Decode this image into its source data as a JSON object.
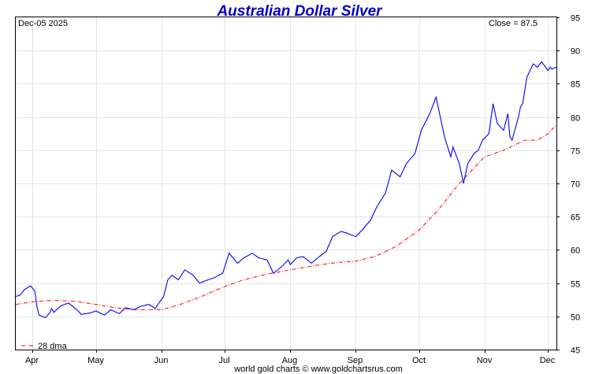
{
  "chart_data": {
    "type": "line",
    "title": "Australian Dollar Silver",
    "date_label": "Dec-05  2025",
    "close_label": "Close = 87.5",
    "footer": "world gold charts © www.goldchartsrus.com",
    "xlabel": "",
    "ylabel": "",
    "ylim": [
      45,
      95
    ],
    "yticks": [
      "45",
      "50",
      "55",
      "60",
      "65",
      "70",
      "75",
      "80",
      "85",
      "90",
      "95"
    ],
    "x_range": [
      "2025-03-24",
      "2025-12-05"
    ],
    "x_ticks": [
      {
        "label": "Apr",
        "date": "2025-04-01"
      },
      {
        "label": "May",
        "date": "2025-05-01"
      },
      {
        "label": "Jun",
        "date": "2025-06-01"
      },
      {
        "label": "Jul",
        "date": "2025-07-01"
      },
      {
        "label": "Aug",
        "date": "2025-08-01"
      },
      {
        "label": "Sep",
        "date": "2025-09-01"
      },
      {
        "label": "Oct",
        "date": "2025-10-01"
      },
      {
        "label": "Nov",
        "date": "2025-11-01"
      },
      {
        "label": "Dec",
        "date": "2025-12-01"
      }
    ],
    "grid": true,
    "legend": {
      "position": "bottom-left",
      "entries": [
        "28 dma"
      ]
    },
    "colors": {
      "price": "#0000ff",
      "dma": "#ff0000",
      "title": "#0000cc",
      "grid": "#dfe5ec"
    },
    "series": [
      {
        "key": "price",
        "x": [
          "2025-03-24",
          "2025-03-26",
          "2025-03-28",
          "2025-03-31",
          "2025-04-02",
          "2025-04-03",
          "2025-04-04",
          "2025-04-07",
          "2025-04-09",
          "2025-04-10",
          "2025-04-11",
          "2025-04-14",
          "2025-04-16",
          "2025-04-18",
          "2025-04-22",
          "2025-04-24",
          "2025-04-28",
          "2025-05-01",
          "2025-05-05",
          "2025-05-08",
          "2025-05-12",
          "2025-05-15",
          "2025-05-19",
          "2025-05-22",
          "2025-05-26",
          "2025-05-29",
          "2025-06-02",
          "2025-06-04",
          "2025-06-06",
          "2025-06-09",
          "2025-06-12",
          "2025-06-16",
          "2025-06-19",
          "2025-06-23",
          "2025-06-26",
          "2025-06-30",
          "2025-07-03",
          "2025-07-07",
          "2025-07-10",
          "2025-07-14",
          "2025-07-17",
          "2025-07-21",
          "2025-07-24",
          "2025-07-28",
          "2025-07-31",
          "2025-08-01",
          "2025-08-04",
          "2025-08-07",
          "2025-08-11",
          "2025-08-14",
          "2025-08-18",
          "2025-08-21",
          "2025-08-25",
          "2025-08-28",
          "2025-09-01",
          "2025-09-04",
          "2025-09-08",
          "2025-09-11",
          "2025-09-15",
          "2025-09-18",
          "2025-09-22",
          "2025-09-25",
          "2025-09-29",
          "2025-10-02",
          "2025-10-06",
          "2025-10-09",
          "2025-10-13",
          "2025-10-16",
          "2025-10-17",
          "2025-10-20",
          "2025-10-22",
          "2025-10-24",
          "2025-10-27",
          "2025-10-29",
          "2025-10-31",
          "2025-11-03",
          "2025-11-05",
          "2025-11-07",
          "2025-11-10",
          "2025-11-12",
          "2025-11-13",
          "2025-11-14",
          "2025-11-17",
          "2025-11-18",
          "2025-11-19",
          "2025-11-21",
          "2025-11-24",
          "2025-11-26",
          "2025-11-28",
          "2025-12-01",
          "2025-12-02",
          "2025-12-03",
          "2025-12-04",
          "2025-12-05"
        ],
        "values": [
          53.0,
          53.2,
          54.0,
          54.6,
          53.8,
          51.5,
          50.2,
          49.8,
          50.5,
          51.2,
          50.6,
          51.5,
          51.8,
          52.0,
          51.0,
          50.3,
          50.5,
          50.8,
          50.2,
          51.0,
          50.4,
          51.3,
          51.0,
          51.5,
          51.8,
          51.2,
          53.0,
          55.5,
          56.2,
          55.5,
          57.0,
          56.2,
          55.0,
          55.5,
          55.8,
          56.5,
          59.5,
          58.0,
          58.8,
          59.5,
          58.8,
          58.5,
          56.5,
          57.5,
          58.5,
          57.8,
          58.8,
          59.0,
          58.0,
          58.8,
          59.8,
          62.0,
          62.8,
          62.5,
          62.0,
          63.0,
          64.5,
          66.5,
          68.5,
          72.0,
          71.0,
          73.0,
          74.5,
          78.0,
          80.5,
          83.0,
          77.0,
          74.0,
          75.5,
          73.0,
          70.0,
          73.0,
          74.5,
          75.0,
          76.5,
          77.5,
          82.0,
          79.0,
          78.0,
          80.5,
          77.0,
          76.5,
          80.0,
          81.5,
          82.0,
          86.0,
          88.0,
          87.5,
          88.3,
          87.0,
          87.5,
          87.2,
          87.4,
          87.5
        ]
      },
      {
        "key": "dma",
        "name": "28 dma",
        "x": [
          "2025-03-24",
          "2025-04-01",
          "2025-04-10",
          "2025-04-20",
          "2025-05-01",
          "2025-05-10",
          "2025-05-20",
          "2025-06-01",
          "2025-06-10",
          "2025-06-20",
          "2025-07-01",
          "2025-07-10",
          "2025-07-20",
          "2025-08-01",
          "2025-08-10",
          "2025-08-20",
          "2025-09-01",
          "2025-09-10",
          "2025-09-20",
          "2025-10-01",
          "2025-10-10",
          "2025-10-20",
          "2025-11-01",
          "2025-11-10",
          "2025-11-20",
          "2025-11-26",
          "2025-12-01",
          "2025-12-05"
        ],
        "values": [
          51.8,
          52.2,
          52.4,
          52.3,
          51.8,
          51.3,
          51.0,
          51.0,
          51.8,
          53.0,
          54.5,
          55.5,
          56.3,
          57.0,
          57.5,
          58.0,
          58.3,
          59.0,
          60.5,
          63.0,
          66.0,
          70.0,
          74.0,
          75.0,
          76.5,
          76.5,
          77.5,
          78.8
        ]
      }
    ]
  }
}
